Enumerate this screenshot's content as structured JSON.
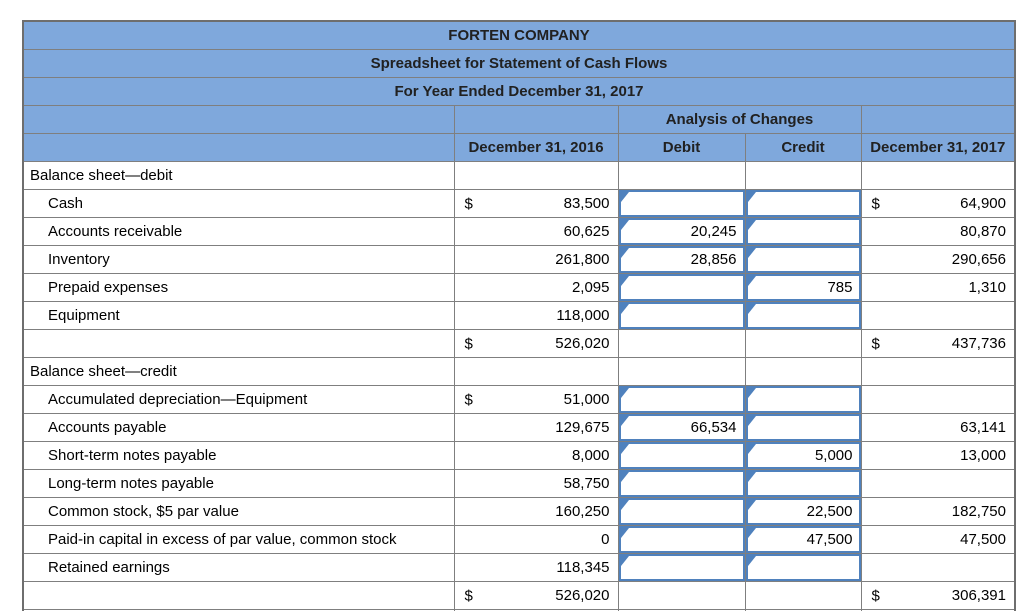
{
  "header": {
    "company": "FORTEN COMPANY",
    "subtitle": "Spreadsheet for Statement of Cash Flows",
    "period": "For Year Ended December 31, 2017",
    "analysis_label": "Analysis of Changes",
    "columns": {
      "beginning": "December 31, 2016",
      "debit": "Debit",
      "credit": "Credit",
      "ending": "December 31, 2017"
    }
  },
  "colors": {
    "header_bg": "#7fa8dc",
    "input_border": "#4f81bd",
    "grid": "#7f7f7f"
  },
  "rows": [
    {
      "type": "section",
      "label": "Balance sheet—debit",
      "b2016": null,
      "debit": null,
      "credit": null,
      "b2017": null
    },
    {
      "type": "item",
      "label": "Cash",
      "b2016": {
        "dollar": "$",
        "value": "83,500"
      },
      "debit": {
        "input": true,
        "value": ""
      },
      "credit": {
        "input": true,
        "value": ""
      },
      "b2017": {
        "dollar": "$",
        "value": "64,900"
      }
    },
    {
      "type": "item",
      "label": "Accounts receivable",
      "b2016": {
        "dollar": "",
        "value": "60,625"
      },
      "debit": {
        "input": true,
        "value": "20,245"
      },
      "credit": {
        "input": true,
        "value": ""
      },
      "b2017": {
        "dollar": "",
        "value": "80,870"
      }
    },
    {
      "type": "item",
      "label": "Inventory",
      "b2016": {
        "dollar": "",
        "value": "261,800"
      },
      "debit": {
        "input": true,
        "value": "28,856"
      },
      "credit": {
        "input": true,
        "value": ""
      },
      "b2017": {
        "dollar": "",
        "value": "290,656"
      }
    },
    {
      "type": "item",
      "label": "Prepaid expenses",
      "b2016": {
        "dollar": "",
        "value": "2,095"
      },
      "debit": {
        "input": true,
        "value": ""
      },
      "credit": {
        "input": true,
        "value": "785"
      },
      "b2017": {
        "dollar": "",
        "value": "1,310"
      }
    },
    {
      "type": "item",
      "label": "Equipment",
      "b2016": {
        "dollar": "",
        "value": "118,000"
      },
      "debit": {
        "input": true,
        "value": ""
      },
      "credit": {
        "input": true,
        "value": ""
      },
      "b2017": null
    },
    {
      "type": "total",
      "label": "",
      "b2016": {
        "dollar": "$",
        "value": "526,020"
      },
      "debit": null,
      "credit": null,
      "b2017": {
        "dollar": "$",
        "value": "437,736"
      }
    },
    {
      "type": "section",
      "label": "Balance sheet—credit",
      "b2016": null,
      "debit": null,
      "credit": null,
      "b2017": null
    },
    {
      "type": "item",
      "label": "Accumulated depreciation—Equipment",
      "b2016": {
        "dollar": "$",
        "value": "51,000"
      },
      "debit": {
        "input": true,
        "value": ""
      },
      "credit": {
        "input": true,
        "value": ""
      },
      "b2017": null
    },
    {
      "type": "item",
      "label": "Accounts payable",
      "b2016": {
        "dollar": "",
        "value": "129,675"
      },
      "debit": {
        "input": true,
        "value": "66,534"
      },
      "credit": {
        "input": true,
        "value": ""
      },
      "b2017": {
        "dollar": "",
        "value": "63,141"
      }
    },
    {
      "type": "item",
      "label": "Short-term notes payable",
      "b2016": {
        "dollar": "",
        "value": "8,000"
      },
      "debit": {
        "input": true,
        "value": ""
      },
      "credit": {
        "input": true,
        "value": "5,000"
      },
      "b2017": {
        "dollar": "",
        "value": "13,000"
      }
    },
    {
      "type": "item",
      "label": "Long-term notes payable",
      "b2016": {
        "dollar": "",
        "value": "58,750"
      },
      "debit": {
        "input": true,
        "value": ""
      },
      "credit": {
        "input": true,
        "value": ""
      },
      "b2017": null
    },
    {
      "type": "item",
      "label": "Common stock, $5 par value",
      "b2016": {
        "dollar": "",
        "value": "160,250"
      },
      "debit": {
        "input": true,
        "value": ""
      },
      "credit": {
        "input": true,
        "value": "22,500"
      },
      "b2017": {
        "dollar": "",
        "value": "182,750"
      }
    },
    {
      "type": "item",
      "label": "Paid-in capital in excess of par value, common stock",
      "b2016": {
        "dollar": "",
        "value": "0"
      },
      "debit": {
        "input": true,
        "value": ""
      },
      "credit": {
        "input": true,
        "value": "47,500"
      },
      "b2017": {
        "dollar": "",
        "value": "47,500"
      }
    },
    {
      "type": "item",
      "label": "Retained earnings",
      "b2016": {
        "dollar": "",
        "value": "118,345"
      },
      "debit": {
        "input": true,
        "value": ""
      },
      "credit": {
        "input": true,
        "value": ""
      },
      "b2017": null
    },
    {
      "type": "total",
      "label": "",
      "b2016": {
        "dollar": "$",
        "value": "526,020"
      },
      "debit": null,
      "credit": null,
      "b2017": {
        "dollar": "$",
        "value": "306,391"
      }
    }
  ]
}
